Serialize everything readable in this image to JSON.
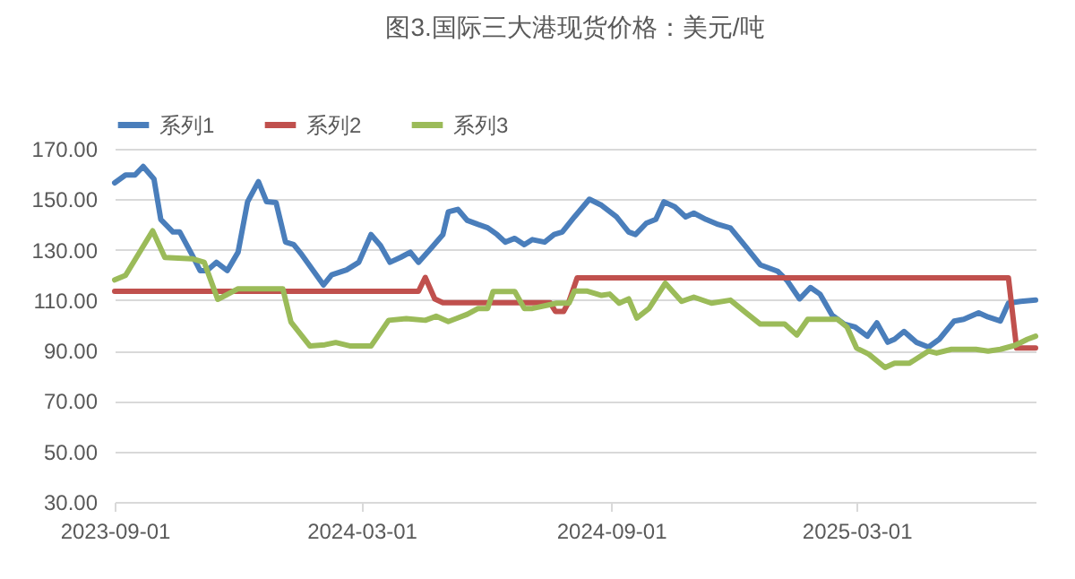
{
  "chart_data": {
    "type": "line",
    "title": "图3.国际三大港现货价格：美元/吨",
    "xlim": [
      "2023-09-01",
      "2025-07-11"
    ],
    "xticks": [
      "2023-09-01",
      "2024-03-01",
      "2024-09-01",
      "2025-03-01"
    ],
    "ylim": [
      30,
      170
    ],
    "yticks": [
      {
        "value": 30,
        "label": "30.00"
      },
      {
        "value": 50,
        "label": "50.00"
      },
      {
        "value": 70,
        "label": "70.00"
      },
      {
        "value": 90,
        "label": "90.00"
      },
      {
        "value": 110,
        "label": "110.00"
      },
      {
        "value": 130,
        "label": "130.00"
      },
      {
        "value": 150,
        "label": "150.00"
      },
      {
        "value": 170,
        "label": "170.00"
      }
    ],
    "grid": "y",
    "legend": "top",
    "marker": "none",
    "line_style": "solid",
    "series": [
      {
        "name": "系列1",
        "color": "#4a7ebb",
        "x": [
          "2023-09-01",
          "2023-09-09",
          "2023-09-16",
          "2023-09-22",
          "2023-09-30",
          "2023-10-05",
          "2023-10-14",
          "2023-10-19",
          "2023-10-28",
          "2023-11-03",
          "2023-11-08",
          "2023-11-15",
          "2023-11-23",
          "2023-12-01",
          "2023-12-08",
          "2023-12-16",
          "2023-12-22",
          "2023-12-29",
          "2024-01-05",
          "2024-01-11",
          "2024-01-17",
          "2024-02-02",
          "2024-02-08",
          "2024-02-19",
          "2024-02-28",
          "2024-03-08",
          "2024-03-15",
          "2024-03-22",
          "2024-03-30",
          "2024-04-06",
          "2024-04-12",
          "2024-04-21",
          "2024-04-30",
          "2024-05-04",
          "2024-05-11",
          "2024-05-18",
          "2024-05-26",
          "2024-06-02",
          "2024-06-09",
          "2024-06-15",
          "2024-06-22",
          "2024-06-29",
          "2024-07-05",
          "2024-07-14",
          "2024-07-21",
          "2024-07-27",
          "2024-08-05",
          "2024-08-16",
          "2024-08-25",
          "2024-09-05",
          "2024-09-14",
          "2024-09-19",
          "2024-09-27",
          "2024-10-04",
          "2024-10-10",
          "2024-10-18",
          "2024-10-26",
          "2024-11-01",
          "2024-11-10",
          "2024-11-19",
          "2024-11-28",
          "2024-12-09",
          "2024-12-20",
          "2025-01-02",
          "2025-01-09",
          "2025-01-18",
          "2025-01-26",
          "2025-02-02",
          "2025-02-11",
          "2025-02-20",
          "2025-02-28",
          "2025-03-09",
          "2025-03-16",
          "2025-03-24",
          "2025-03-29",
          "2025-04-05",
          "2025-04-14",
          "2025-04-23",
          "2025-05-01",
          "2025-05-12",
          "2025-05-19",
          "2025-05-30",
          "2025-06-06",
          "2025-06-15",
          "2025-06-21",
          "2025-06-30",
          "2025-07-11"
        ],
        "values": [
          156.5,
          159.6,
          159.6,
          163,
          158,
          142,
          137,
          137,
          128,
          121.7,
          121.7,
          125,
          121.7,
          129,
          149,
          157,
          149,
          148.7,
          133,
          132,
          128,
          116,
          120,
          122,
          125,
          136,
          131.6,
          125,
          127,
          129,
          125,
          130.4,
          136,
          145,
          146,
          141.6,
          140,
          138.7,
          136,
          133,
          134.5,
          132,
          134,
          133,
          136,
          137,
          143,
          150,
          147.6,
          143,
          137,
          136,
          140.5,
          142,
          149,
          147,
          143,
          144.5,
          142,
          140,
          138.6,
          131.4,
          124,
          121.4,
          117.6,
          110.5,
          115,
          112.4,
          104,
          100.5,
          99.3,
          95.7,
          101,
          93.3,
          94.5,
          97.6,
          93.3,
          91.4,
          94.5,
          101.7,
          102.4,
          105,
          103.3,
          101.7,
          108.8,
          109.5,
          110
        ]
      },
      {
        "name": "系列2",
        "color": "#c0504d",
        "x": [
          "2023-09-01",
          "2024-04-12",
          "2024-04-17",
          "2024-04-24",
          "2024-04-30",
          "2024-07-18",
          "2024-07-22",
          "2024-07-28",
          "2024-08-01",
          "2024-08-07",
          "2025-06-21",
          "2025-06-27",
          "2025-07-11"
        ],
        "values": [
          113.5,
          113.5,
          119,
          110.5,
          109,
          109,
          105.5,
          105.5,
          109.5,
          118.8,
          118.8,
          91,
          91
        ]
      },
      {
        "name": "系列3",
        "color": "#9bbb59",
        "x": [
          "2023-09-01",
          "2023-09-09",
          "2023-09-29",
          "2023-10-08",
          "2023-10-28",
          "2023-11-06",
          "2023-11-16",
          "2023-12-01",
          "2024-01-03",
          "2024-01-09",
          "2024-01-23",
          "2024-02-03",
          "2024-02-11",
          "2024-02-22",
          "2024-03-08",
          "2024-03-21",
          "2024-04-03",
          "2024-04-17",
          "2024-04-25",
          "2024-05-04",
          "2024-05-18",
          "2024-05-26",
          "2024-06-02",
          "2024-06-06",
          "2024-06-22",
          "2024-06-29",
          "2024-07-05",
          "2024-07-23",
          "2024-08-01",
          "2024-08-05",
          "2024-08-14",
          "2024-08-25",
          "2024-08-31",
          "2024-09-07",
          "2024-09-14",
          "2024-09-20",
          "2024-09-29",
          "2024-10-11",
          "2024-10-23",
          "2024-11-01",
          "2024-11-14",
          "2024-11-28",
          "2024-12-09",
          "2024-12-20",
          "2025-01-07",
          "2025-01-16",
          "2025-01-24",
          "2025-02-15",
          "2025-02-22",
          "2025-03-01",
          "2025-03-10",
          "2025-03-22",
          "2025-03-29",
          "2025-04-09",
          "2025-04-23",
          "2025-04-29",
          "2025-05-10",
          "2025-05-28",
          "2025-06-06",
          "2025-06-15",
          "2025-06-26",
          "2025-07-05",
          "2025-07-11"
        ],
        "values": [
          118,
          119.8,
          137.5,
          126.9,
          126.4,
          125,
          110.3,
          114.5,
          114.5,
          101.3,
          91.8,
          92.3,
          93.2,
          91.8,
          91.8,
          102,
          102.7,
          102,
          103.6,
          101.5,
          104.4,
          106.7,
          106.7,
          113.4,
          113.4,
          106.7,
          106.7,
          108.8,
          108.8,
          113.6,
          113.6,
          111.9,
          112.4,
          108.8,
          110.5,
          102.9,
          106.7,
          116.7,
          109.5,
          111.2,
          108.8,
          110,
          105.2,
          100.5,
          100.5,
          96.2,
          102.4,
          102.4,
          99.3,
          91,
          88.6,
          83.3,
          85,
          85,
          89.8,
          89,
          90.5,
          90.5,
          89.8,
          90.5,
          92.1,
          94.5,
          95.7
        ]
      }
    ]
  }
}
